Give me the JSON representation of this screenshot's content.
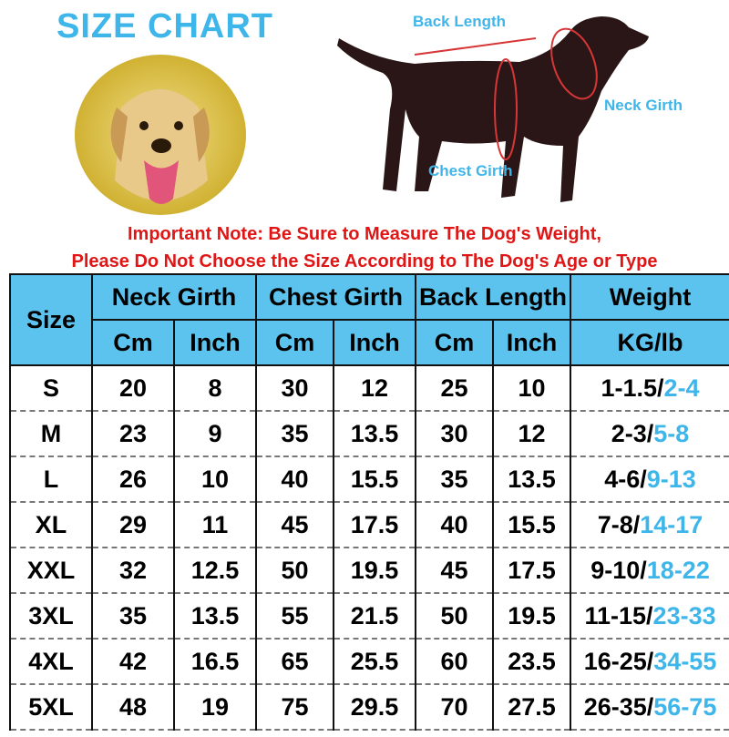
{
  "header": {
    "title": "SIZE CHART"
  },
  "diagram": {
    "back_length": "Back Length",
    "neck_girth": "Neck Girth",
    "chest_girth": "Chest Girth"
  },
  "note": {
    "lines": [
      "Important Note: Be Sure to Measure The Dog's Weight,",
      "Please Do Not Choose the Size According to The Dog's Age or Type"
    ]
  },
  "table": {
    "size_header": "Size",
    "groups": [
      "Neck Girth",
      "Chest Girth",
      "Back Length"
    ],
    "units": [
      "Cm",
      "Inch",
      "Cm",
      "Inch",
      "Cm",
      "Inch"
    ],
    "weight_header": "Weight",
    "weight_unit": "KG/lb",
    "weight_separator": "/",
    "rows": [
      {
        "size": "S",
        "values": [
          20,
          8,
          30,
          12,
          25,
          10
        ],
        "kg": "1-1.5",
        "lb": "2-4"
      },
      {
        "size": "M",
        "values": [
          23,
          9,
          35,
          13.5,
          30,
          12
        ],
        "kg": "2-3",
        "lb": "5-8"
      },
      {
        "size": "L",
        "values": [
          26,
          10,
          40,
          15.5,
          35,
          13.5
        ],
        "kg": "4-6",
        "lb": "9-13"
      },
      {
        "size": "XL",
        "values": [
          29,
          11,
          45,
          17.5,
          40,
          15.5
        ],
        "kg": "7-8",
        "lb": "14-17"
      },
      {
        "size": "XXL",
        "values": [
          32,
          12.5,
          50,
          19.5,
          45,
          17.5
        ],
        "kg": "9-10",
        "lb": "18-22"
      },
      {
        "size": "3XL",
        "values": [
          35,
          13.5,
          55,
          21.5,
          50,
          19.5
        ],
        "kg": "11-15",
        "lb": "23-33"
      },
      {
        "size": "4XL",
        "values": [
          42,
          16.5,
          65,
          25.5,
          60,
          23.5
        ],
        "kg": "16-25",
        "lb": "34-55"
      },
      {
        "size": "5XL",
        "values": [
          48,
          19,
          75,
          29.5,
          70,
          27.5
        ],
        "kg": "26-35",
        "lb": "56-75"
      }
    ]
  }
}
